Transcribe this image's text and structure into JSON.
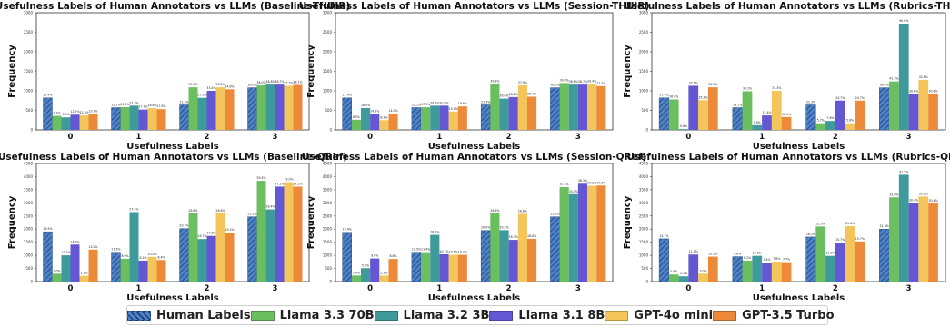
{
  "figure": {
    "legend": [
      {
        "label": "Human Labels",
        "color": "#4e83c8",
        "hatched": true
      },
      {
        "label": "Llama 3.3 70B",
        "color": "#6cbf61"
      },
      {
        "label": "Llama 3.2 3B",
        "color": "#3f9b9b"
      },
      {
        "label": "Llama 3.1 8B",
        "color": "#6457d4"
      },
      {
        "label": "GPT-4o mini",
        "color": "#f4c55a"
      },
      {
        "label": "GPT-3.5 Turbo",
        "color": "#ed8a3a"
      }
    ]
  },
  "chart_data": [
    {
      "type": "bar",
      "title": "Usefulness Labels of Human Annotators vs LLMs (Baseline-THUIR)",
      "xlabel": "Usefulness Labels",
      "ylabel": "Frequency",
      "categories": [
        "0",
        "1",
        "2",
        "3"
      ],
      "ylim": [
        0,
        3000
      ],
      "yticks": [
        0,
        500,
        1000,
        1500,
        2000,
        2500,
        3000
      ],
      "series": [
        {
          "name": "Human Labels",
          "values": [
            820,
            570,
            640,
            1080
          ],
          "labels": [
            "27.4%",
            "19.1%",
            "21.3%",
            "36.0%"
          ]
        },
        {
          "name": "Llama 3.3 70B",
          "values": [
            360,
            580,
            1090,
            1140
          ],
          "labels": [
            "9.7%",
            "19.5%",
            "35.9%",
            "38.0%"
          ]
        },
        {
          "name": "Llama 3.2 3B",
          "values": [
            320,
            620,
            820,
            1160
          ],
          "labels": [
            "7.9%",
            "22.3%",
            "27.3%",
            "38.8%"
          ]
        },
        {
          "name": "Llama 3.1 8B",
          "values": [
            390,
            520,
            1000,
            1160
          ],
          "labels": [
            "12.7%",
            "17.1%",
            "33.4%",
            "38.7%"
          ]
        },
        {
          "name": "GPT-4o mini",
          "values": [
            370,
            560,
            1090,
            1130
          ],
          "labels": [
            "12.3%",
            "18.6%",
            "36.8%",
            "37.7%"
          ]
        },
        {
          "name": "GPT-3.5 Turbo",
          "values": [
            410,
            530,
            1040,
            1150
          ],
          "labels": [
            "13.7%",
            "17.6%",
            "34.6%",
            "38.1%"
          ]
        }
      ]
    },
    {
      "type": "bar",
      "title": "Usefulness Labels of Human Annotators vs LLMs (Session-THUIR)",
      "xlabel": "Usefulness Labels",
      "ylabel": "Frequency",
      "categories": [
        "0",
        "1",
        "2",
        "3"
      ],
      "ylim": [
        0,
        3000
      ],
      "yticks": [
        0,
        500,
        1000,
        1500,
        2000,
        2500,
        3000
      ],
      "series": [
        {
          "name": "Human Labels",
          "values": [
            820,
            570,
            640,
            1080
          ],
          "labels": [
            "27.4%",
            "19.1%",
            "21.3%",
            "36.0%"
          ]
        },
        {
          "name": "Llama 3.3 70B",
          "values": [
            260,
            580,
            1180,
            1200
          ],
          "labels": [
            "8.5%",
            "17.5%",
            "39.3%",
            "39.8%"
          ]
        },
        {
          "name": "Llama 3.2 3B",
          "values": [
            560,
            620,
            800,
            1160
          ],
          "labels": [
            "18.5%",
            "20.6%",
            "26.6%",
            "38.6%"
          ]
        },
        {
          "name": "Llama 3.1 8B",
          "values": [
            410,
            620,
            840,
            1160
          ],
          "labels": [
            "14.5%",
            "20.8%",
            "28.2%",
            "38.7%"
          ]
        },
        {
          "name": "GPT-4o mini",
          "values": [
            250,
            470,
            1140,
            1180
          ],
          "labels": [
            "8.3%",
            "15.9%",
            "37.9%",
            "39.4%"
          ]
        },
        {
          "name": "GPT-3.5 Turbo",
          "values": [
            420,
            600,
            850,
            1120
          ],
          "labels": [
            "14.0%",
            "19.6%",
            "28.4%",
            "37.4%"
          ]
        }
      ]
    },
    {
      "type": "bar",
      "title": "Usefulness Labels of Human Annotators vs LLMs (Rubrics-THUIR)",
      "xlabel": "Usefulness Labels",
      "ylabel": "Frequency",
      "categories": [
        "0",
        "1",
        "2",
        "3"
      ],
      "ylim": [
        0,
        3000
      ],
      "yticks": [
        0,
        500,
        1000,
        1500,
        2000,
        2500,
        3000
      ],
      "series": [
        {
          "name": "Human Labels",
          "values": [
            820,
            570,
            640,
            1080
          ],
          "labels": [
            "27.4%",
            "19.1%",
            "21.3%",
            "36.0%"
          ]
        },
        {
          "name": "Llama 3.3 70B",
          "values": [
            780,
            990,
            170,
            1240
          ],
          "labels": [
            "26.0%",
            "33.1%",
            "5.7%",
            "41.3%"
          ]
        },
        {
          "name": "Llama 3.2 3B",
          "values": [
            20,
            120,
            230,
            2720
          ],
          "labels": [
            "0.6%",
            "3.9%",
            "7.6%",
            "90.6%"
          ]
        },
        {
          "name": "Llama 3.1 8B",
          "values": [
            1130,
            370,
            750,
            920
          ],
          "labels": [
            "37.6%",
            "12.4%",
            "24.7%",
            "30.6%"
          ]
        },
        {
          "name": "GPT-4o mini",
          "values": [
            760,
            1000,
            170,
            1280
          ],
          "labels": [
            "25.3%",
            "33.3%",
            "5.6%",
            "42.6%"
          ]
        },
        {
          "name": "GPT-3.5 Turbo",
          "values": [
            1090,
            330,
            750,
            920
          ],
          "labels": [
            "36.3%",
            "10.9%",
            "24.7%",
            "30.6%"
          ]
        }
      ]
    },
    {
      "type": "bar",
      "title": "Usefulness Labels of Human Annotators vs LLMs (Baseline-QRef)",
      "xlabel": "Usefulness Labels",
      "ylabel": "Frequency",
      "categories": [
        "0",
        "1",
        "2",
        "3"
      ],
      "ylim": [
        0,
        4500
      ],
      "yticks": [
        0,
        500,
        1000,
        1500,
        2000,
        2500,
        3000,
        3500,
        4000,
        4500
      ],
      "series": [
        {
          "name": "Human Labels",
          "values": [
            1900,
            1120,
            2020,
            2470
          ],
          "labels": [
            "19.5%",
            "11.5%",
            "20.7%",
            "25.3%"
          ]
        },
        {
          "name": "Llama 3.3 70B",
          "values": [
            300,
            870,
            2600,
            3840
          ],
          "labels": [
            "3.0%",
            "8.9%",
            "26.6%",
            "39.5%"
          ]
        },
        {
          "name": "Llama 3.2 3B",
          "values": [
            1000,
            2650,
            1620,
            2750
          ],
          "labels": [
            "12.7%",
            "27.4%",
            "16.7%",
            "28.4%"
          ]
        },
        {
          "name": "Llama 3.1 8B",
          "values": [
            1410,
            800,
            1740,
            3620
          ],
          "labels": [
            "14.5%",
            "8.2%",
            "17.8%",
            "37.2%"
          ]
        },
        {
          "name": "GPT-4o mini",
          "values": [
            220,
            940,
            2600,
            3790
          ],
          "labels": [
            "2.2%",
            "10.0%",
            "26.6%",
            "39.0%"
          ]
        },
        {
          "name": "GPT-3.5 Turbo",
          "values": [
            1220,
            820,
            1870,
            3620
          ],
          "labels": [
            "14.2%",
            "8.4%",
            "19.2%",
            "37.2%"
          ]
        }
      ]
    },
    {
      "type": "bar",
      "title": "Usefulness Labels of Human Annotators vs LLMs (Session-QRef)",
      "xlabel": "Usefulness Labels",
      "ylabel": "Frequency",
      "categories": [
        "0",
        "1",
        "2",
        "3"
      ],
      "ylim": [
        0,
        4500
      ],
      "yticks": [
        0,
        500,
        1000,
        1500,
        2000,
        2500,
        3000,
        3500,
        4000,
        4500
      ],
      "series": [
        {
          "name": "Human Labels",
          "values": [
            1880,
            1120,
            1950,
            2470
          ],
          "labels": [
            "19.4%",
            "11.5%",
            "20.0%",
            "25.3%"
          ]
        },
        {
          "name": "Llama 3.3 70B",
          "values": [
            230,
            1120,
            2600,
            3600
          ],
          "labels": [
            "2.4%",
            "11.4%",
            "26.6%",
            "37.1%"
          ]
        },
        {
          "name": "Llama 3.2 3B",
          "values": [
            510,
            1780,
            1960,
            3330
          ],
          "labels": [
            "5.2%",
            "18.5%",
            "20.2%",
            "34.3%"
          ]
        },
        {
          "name": "Llama 3.1 8B",
          "values": [
            880,
            1040,
            1590,
            3730
          ],
          "labels": [
            "9.0%",
            "10.7%",
            "16.3%",
            "38.3%"
          ]
        },
        {
          "name": "GPT-4o mini",
          "values": [
            230,
            1020,
            2580,
            3650
          ],
          "labels": [
            "2.3%",
            "10.5%",
            "26.8%",
            "37.2%"
          ]
        },
        {
          "name": "GPT-3.5 Turbo",
          "values": [
            860,
            1020,
            1630,
            3660
          ],
          "labels": [
            "8.8%",
            "10.7%",
            "16.8%",
            "37.6%"
          ]
        }
      ]
    },
    {
      "type": "bar",
      "title": "Usefulness Labels of Human Annotators vs LLMs (Rubrics-QRef)",
      "xlabel": "Usefulness Labels",
      "ylabel": "Frequency",
      "categories": [
        "0",
        "1",
        "2",
        "3"
      ],
      "ylim": [
        0,
        4500
      ],
      "yticks": [
        0,
        500,
        1000,
        1500,
        2000,
        2500,
        3000,
        3500,
        4000,
        4500
      ],
      "series": [
        {
          "name": "Human Labels",
          "values": [
            1630,
            950,
            1700,
            2000
          ],
          "labels": [
            "15.7%",
            "9.6%",
            "16.2%",
            "21.8%"
          ]
        },
        {
          "name": "Llama 3.3 70B",
          "values": [
            270,
            800,
            2100,
            3210
          ],
          "labels": [
            "5.8%",
            "8.2%",
            "21.0%",
            "32.0%"
          ]
        },
        {
          "name": "Llama 3.2 3B",
          "values": [
            200,
            980,
            980,
            4070
          ],
          "labels": [
            "2.1%",
            "10.0%",
            "10.2%",
            "41.5%"
          ]
        },
        {
          "name": "Llama 3.1 8B",
          "values": [
            1030,
            720,
            1480,
            2990
          ],
          "labels": [
            "11.1%",
            "7.4%",
            "15.7%",
            "30.4%"
          ]
        },
        {
          "name": "GPT-4o mini",
          "values": [
            300,
            760,
            2110,
            3240
          ],
          "labels": [
            "3.0%",
            "7.8%",
            "21.6%",
            "32.2%"
          ]
        },
        {
          "name": "GPT-3.5 Turbo",
          "values": [
            950,
            740,
            1530,
            2980
          ],
          "labels": [
            "10.1%",
            "7.7%",
            "15.7%",
            "30.4%"
          ]
        }
      ]
    }
  ]
}
